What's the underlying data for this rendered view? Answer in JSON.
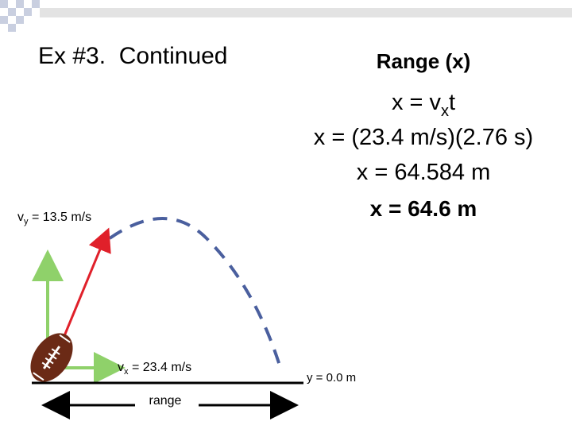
{
  "title": "Ex #3.  Continued",
  "solution": {
    "heading": "Range (x)",
    "formula": {
      "start": "x = v",
      "sub": "x",
      "end": "t"
    },
    "substitution": "x = (23.4 m/s)(2.76 s)",
    "result": "x = 64.584 m",
    "answer": "x = 64.6 m"
  },
  "diagram": {
    "vy_label": {
      "start": "v",
      "sub": "y",
      "end": " = 13.5 m/s"
    },
    "vx_label": {
      "start": "v",
      "sub": "x",
      "end": " = 23.4 m/s"
    },
    "ground_label": "y = 0.0 m",
    "range_label": "range"
  }
}
